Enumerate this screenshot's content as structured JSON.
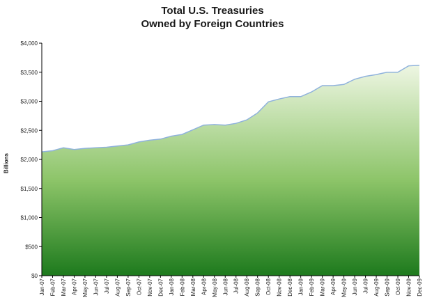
{
  "chart_data": {
    "type": "area",
    "title": "Total U.S. Treasuries",
    "subtitle": "Owned by Foreign Countries",
    "xlabel": "",
    "ylabel": "Billions",
    "ylim": [
      0,
      4000
    ],
    "yticks": [
      "$0",
      "$500",
      "$1,000",
      "$1,500",
      "$2,000",
      "$2,500",
      "$3,000",
      "$3,500",
      "$4,000"
    ],
    "ytick_values": [
      0,
      500,
      1000,
      1500,
      2000,
      2500,
      3000,
      3500,
      4000
    ],
    "grid": false,
    "legend": "none",
    "categories": [
      "Jan-07",
      "Feb-07",
      "Mar-07",
      "Apr-07",
      "May-07",
      "Jun-07",
      "Jul-07",
      "Aug-07",
      "Sep-07",
      "Oct-07",
      "Nov-07",
      "Dec-07",
      "Jan-08",
      "Feb-08",
      "Mar-08",
      "Apr-08",
      "May-08",
      "Jun-08",
      "Jul-08",
      "Aug-08",
      "Sep-08",
      "Oct-08",
      "Nov-08",
      "Dec-08",
      "Jan-09",
      "Feb-09",
      "Mar-09",
      "Apr-09",
      "May-09",
      "Jun-09",
      "Jul-09",
      "Aug-09",
      "Sep-09",
      "Oct-09",
      "Nov-09",
      "Dec-09"
    ],
    "values": [
      2130,
      2150,
      2200,
      2170,
      2190,
      2200,
      2210,
      2230,
      2250,
      2300,
      2330,
      2350,
      2400,
      2430,
      2510,
      2590,
      2600,
      2590,
      2620,
      2680,
      2800,
      2990,
      3040,
      3080,
      3080,
      3160,
      3270,
      3270,
      3290,
      3380,
      3430,
      3460,
      3500,
      3500,
      3610,
      3620
    ],
    "colors": {
      "line": "#8fb2dc",
      "fill_top": "#eef6e3",
      "fill_mid": "#8cc468",
      "fill_bottom": "#1d7a1d",
      "axis": "#000000"
    }
  }
}
